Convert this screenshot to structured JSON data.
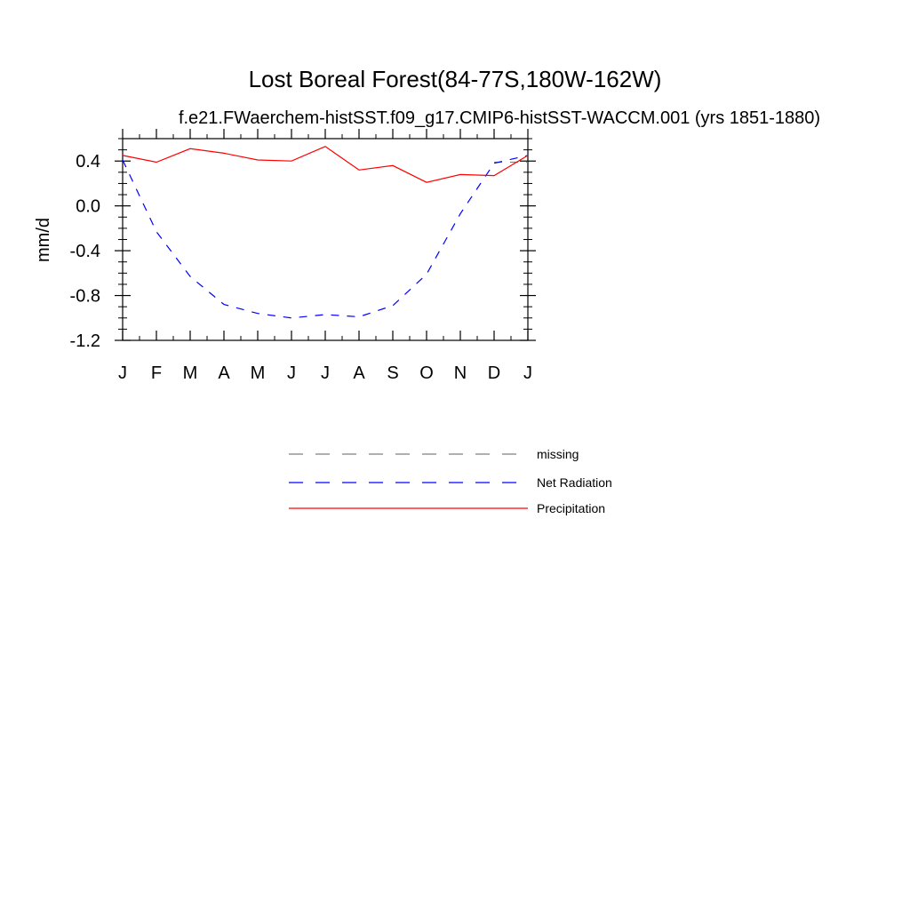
{
  "chart_data": {
    "type": "line",
    "title": "Lost Boreal Forest(84-77S,180W-162W)",
    "subtitle": "f.e21.FWaerchem-histSST.f09_g17.CMIP6-histSST-WACCM.001 (yrs 1851-1880)",
    "xlabel": "",
    "ylabel": "mm/d",
    "categories": [
      "J",
      "F",
      "M",
      "A",
      "M",
      "J",
      "J",
      "A",
      "S",
      "O",
      "N",
      "D",
      "J"
    ],
    "ylim": [
      -1.2,
      0.6
    ],
    "yticks": [
      -1.2,
      -0.8,
      -0.4,
      0.0,
      0.4
    ],
    "ytick_labels": [
      "-1.2",
      "-0.8",
      "-0.4",
      "0.0",
      "0.4"
    ],
    "grid": false,
    "legend_position": "below",
    "series": [
      {
        "name": "missing",
        "color": "#808080",
        "dash": "dashed",
        "values": [
          null,
          null,
          null,
          null,
          null,
          null,
          null,
          null,
          null,
          null,
          null,
          0.39,
          0.39
        ]
      },
      {
        "name": "Net Radiation",
        "color": "#0000ff",
        "dash": "dashed",
        "values": [
          0.41,
          -0.23,
          -0.63,
          -0.88,
          -0.96,
          -1.0,
          -0.97,
          -0.99,
          -0.89,
          -0.61,
          -0.07,
          0.38,
          0.45
        ]
      },
      {
        "name": "Precipitation",
        "color": "#ff0000",
        "dash": "solid",
        "values": [
          0.45,
          0.39,
          0.51,
          0.47,
          0.41,
          0.4,
          0.53,
          0.32,
          0.36,
          0.21,
          0.28,
          0.27,
          0.45
        ]
      }
    ]
  }
}
